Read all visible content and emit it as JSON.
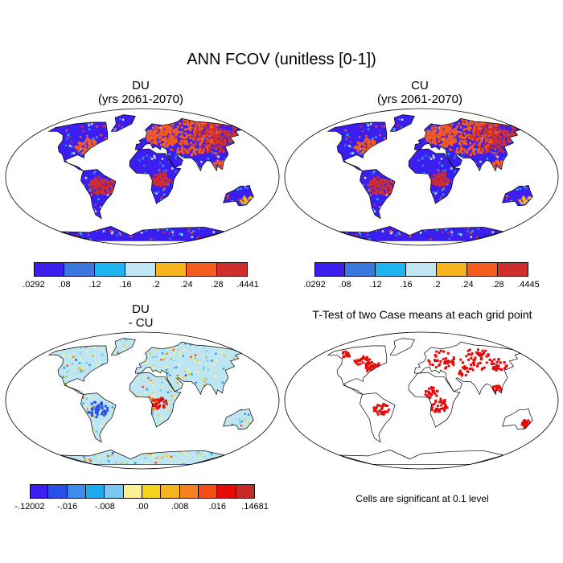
{
  "title": "ANN FCOV (unitless [0-1])",
  "panels": {
    "du": {
      "title": "DU",
      "subtitle": "(yrs 2061-2070)"
    },
    "cu": {
      "title": "CU",
      "subtitle": "(yrs 2061-2070)"
    },
    "diff": {
      "title": "DU",
      "subtitle": "- CU"
    },
    "ttest": {
      "title": "T-Test of two Case means at each grid point",
      "note": "Cells are significant at 0.1 level"
    }
  },
  "colorbars": {
    "du": {
      "colors": [
        "#3c1ef0",
        "#3a78e0",
        "#1eb4f0",
        "#bde6f2",
        "#f5b41e",
        "#f55a1e",
        "#d22d2d"
      ],
      "labels": [
        ".0292",
        ".08",
        ".12",
        ".16",
        ".2",
        ".24",
        ".28",
        ".4441"
      ]
    },
    "cu": {
      "colors": [
        "#3c1ef0",
        "#3a78e0",
        "#1eb4f0",
        "#bde6f2",
        "#f5b41e",
        "#f55a1e",
        "#d22d2d"
      ],
      "labels": [
        ".0292",
        ".08",
        ".12",
        ".16",
        ".2",
        ".24",
        ".28",
        ".4445"
      ]
    },
    "diff": {
      "colors": [
        "#3c1ef0",
        "#2850e6",
        "#3c8cf0",
        "#1eaaf0",
        "#78c8f0",
        "#fff096",
        "#f5d21e",
        "#f5b41e",
        "#f5821e",
        "#f54b14",
        "#e60a0a",
        "#c82828"
      ],
      "labels": [
        "-.12002",
        "-.016",
        "-.008",
        ".00",
        ".008",
        ".016",
        ".14681"
      ]
    }
  },
  "colors": {
    "land_outline": "#000000",
    "significant": "#e60a0a"
  }
}
